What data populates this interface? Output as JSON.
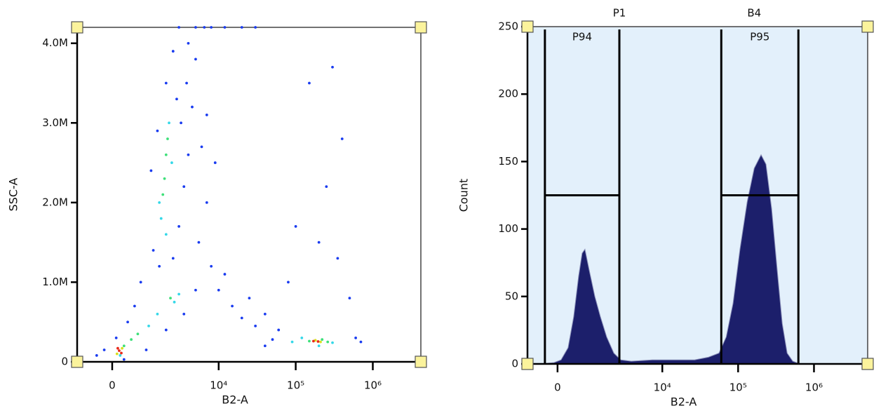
{
  "chart_data": [
    {
      "type": "scatter",
      "x_label": "B2-A",
      "y_label": "SSC-A",
      "xscale": "biexponential",
      "xlim": [
        -1040,
        4200000
      ],
      "ylim": [
        0,
        4200000
      ],
      "xticks": [
        0,
        {
          "value": 10000,
          "label": "10⁴"
        },
        {
          "value": 100000,
          "label": "10⁵"
        },
        {
          "value": 1000000,
          "label": "10⁶"
        }
      ],
      "yticks": [
        0,
        {
          "value": 1000000,
          "label": "1.0M"
        },
        {
          "value": 2000000,
          "label": "2.0M"
        },
        {
          "value": 3000000,
          "label": "3.0M"
        },
        {
          "value": 4000000,
          "label": "4.0M"
        }
      ],
      "series": [
        {
          "color": "#1a3cf0",
          "x": [
            1300,
            1600,
            2500,
            3000,
            3500,
            4000,
            2800,
            2000,
            1500,
            1200,
            3200,
            3800,
            5000,
            4500,
            6000,
            7000,
            5500,
            8000,
            10000,
            15000,
            20000,
            30000,
            12000,
            25000,
            40000,
            60000,
            80000,
            200000,
            300000,
            400000,
            150000,
            250000,
            100000,
            350000,
            500000,
            600000,
            700000,
            50000,
            40000,
            800,
            600,
            400,
            100,
            -200,
            -400,
            300,
            1000,
            2000,
            3500,
            5000,
            3000,
            5000,
            8000,
            12000,
            20000,
            30000,
            6500,
            2500,
            4000,
            7000,
            9000
          ],
          "values": [
            1400000,
            1200000,
            1300000,
            1700000,
            2200000,
            2600000,
            3300000,
            3500000,
            2900000,
            2400000,
            3000000,
            3500000,
            3800000,
            3200000,
            2700000,
            2000000,
            1500000,
            1200000,
            900000,
            700000,
            550000,
            450000,
            1100000,
            800000,
            600000,
            400000,
            1000000,
            1500000,
            3700000,
            2800000,
            3500000,
            2200000,
            1700000,
            1300000,
            800000,
            300000,
            250000,
            280000,
            200000,
            1000000,
            700000,
            500000,
            300000,
            150000,
            80000,
            30000,
            150000,
            400000,
            600000,
            900000,
            4200000,
            4200000,
            4200000,
            4200000,
            4200000,
            4200000,
            4200000,
            3900000,
            4000000,
            3100000,
            2500000
          ]
        },
        {
          "color": "#35d8e8",
          "x": [
            1700,
            2200,
            2000,
            2400,
            1600,
            1100,
            1500,
            2600,
            3000,
            120000,
            300000,
            90000,
            200000,
            200
          ],
          "values": [
            1800000,
            3000000,
            1600000,
            2500000,
            2000000,
            450000,
            600000,
            750000,
            850000,
            300000,
            240000,
            250000,
            200000,
            80000
          ]
        },
        {
          "color": "#3ee07a",
          "x": [
            300,
            500,
            700,
            1900,
            2000,
            1800,
            2100,
            150000,
            220000,
            260000,
            2300
          ],
          "values": [
            200000,
            280000,
            350000,
            2300000,
            2600000,
            2100000,
            2800000,
            260000,
            280000,
            250000,
            800000
          ]
        },
        {
          "color": "#d8e020",
          "x": [
            250,
            120,
            180000,
            210000
          ],
          "values": [
            170000,
            100000,
            270000,
            250000
          ]
        },
        {
          "color": "#e82a1a",
          "x": [
            175,
            230,
            140,
            170000,
            195000
          ],
          "values": [
            140000,
            110000,
            170000,
            260000,
            255000
          ]
        }
      ]
    },
    {
      "type": "area",
      "x_label": "B2-A",
      "y_label": "Count",
      "xscale": "biexponential",
      "color": "#1c1f6b",
      "background": "#e3f0fb",
      "xlim": [
        -870,
        5100000
      ],
      "ylim": [
        0,
        250
      ],
      "xticks": [
        0,
        {
          "value": 10000,
          "label": "10⁴"
        },
        {
          "value": 100000,
          "label": "10⁵"
        },
        {
          "value": 1000000,
          "label": "10⁶"
        }
      ],
      "yticks": [
        0,
        50,
        100,
        150,
        200,
        250
      ],
      "x": [
        -681,
        -466,
        -89,
        89,
        271,
        425,
        570,
        681,
        775,
        925,
        1158,
        1416,
        1758,
        2224,
        2782,
        3865,
        7380,
        14080,
        26656,
        40650,
        55900,
        69700,
        85800,
        105800,
        131600,
        163000,
        200700,
        233000,
        276600,
        327000,
        381500,
        443000,
        525600,
        654700,
        1200000
      ],
      "values": [
        0,
        0,
        1,
        3,
        12,
        35,
        65,
        82,
        85,
        70,
        50,
        35,
        20,
        8,
        3,
        2,
        3,
        3,
        3,
        5,
        8,
        20,
        45,
        85,
        120,
        145,
        155,
        148,
        115,
        70,
        30,
        8,
        2,
        0,
        0
      ],
      "gates": [
        {
          "name": "P94",
          "range": [
            -327,
            2657
          ],
          "level": 125
        },
        {
          "name": "P95",
          "range": [
            60000,
            623000
          ],
          "level": 125
        }
      ],
      "annotations": [
        {
          "text": "P1",
          "x": 2657
        },
        {
          "text": "B4",
          "x": 163000
        }
      ]
    }
  ]
}
